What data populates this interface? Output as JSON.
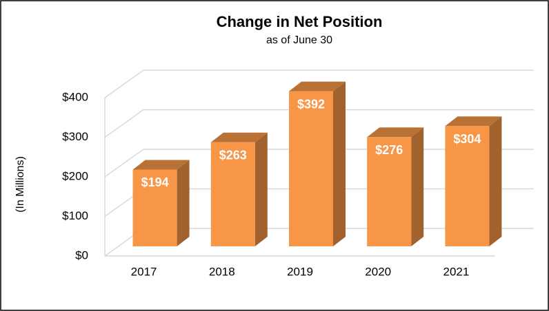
{
  "chart_data": {
    "type": "bar3d",
    "title": "Change in Net Position",
    "subtitle": "as of June 30",
    "y_label": "(In Millions)",
    "categories": [
      "2017",
      "2018",
      "2019",
      "2020",
      "2021"
    ],
    "values": [
      194,
      263,
      392,
      276,
      304
    ],
    "value_labels": [
      "$194",
      "$263",
      "$392",
      "$276",
      "$304"
    ],
    "color": "#f79646",
    "ylim": [
      0,
      400
    ],
    "yticks": [
      {
        "value": 0,
        "label": "$0"
      },
      {
        "value": 100,
        "label": "$100"
      },
      {
        "value": 200,
        "label": "$200"
      },
      {
        "value": 300,
        "label": "$300"
      },
      {
        "value": 400,
        "label": "$400"
      }
    ],
    "grid": true
  }
}
